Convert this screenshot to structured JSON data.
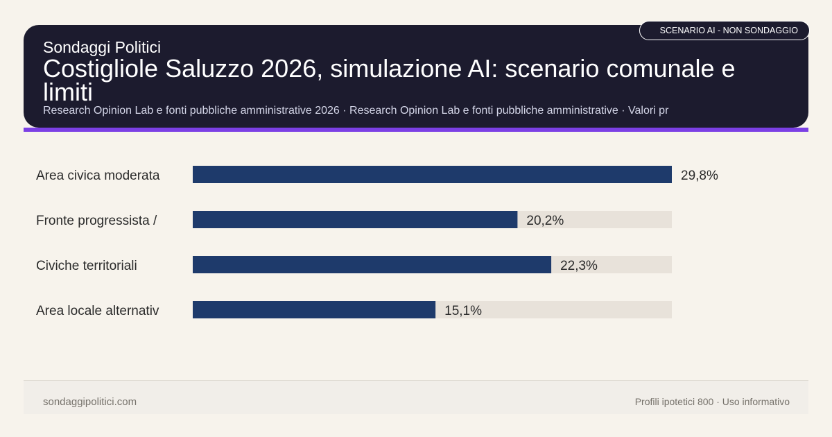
{
  "header": {
    "brand": "Sondaggi Politici",
    "title": "Costigliole Saluzzo 2026, simulazione AI: scenario comunale e limiti",
    "subtitle": "Research Opinion Lab e fonti pubbliche amministrative 2026 · Research Opinion Lab e fonti pubbliche amministrative · Valori pr",
    "badge": "SCENARIO AI - NON SONDAGGIO"
  },
  "colors": {
    "header_bg": "#1c1b2e",
    "accent": "#7b3fe4",
    "bar": "#1e3a6b",
    "track": "#e8e2da",
    "background": "#f7f3ec"
  },
  "chart_data": {
    "type": "bar",
    "orientation": "horizontal",
    "categories": [
      "Area civica moderata",
      "Fronte progressista /",
      "Civiche territoriali",
      "Area locale alternativ"
    ],
    "values": [
      29.8,
      20.2,
      22.3,
      15.1
    ],
    "value_labels": [
      "29,8%",
      "20,2%",
      "22,3%",
      "15,1%"
    ],
    "xlim": [
      0,
      29.8
    ],
    "unit": "%",
    "grid": false,
    "legend": "none"
  },
  "footer": {
    "left": "sondaggipolitici.com",
    "right": "Profili ipotetici 800 · Uso informativo"
  }
}
